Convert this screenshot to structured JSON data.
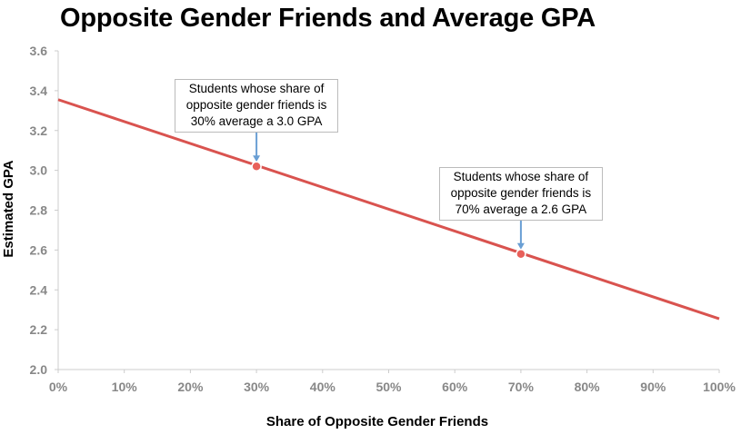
{
  "chart_data": {
    "type": "line",
    "title": "Opposite Gender Friends and Average GPA",
    "xlabel": "Share of Opposite Gender Friends",
    "ylabel": "Estimated GPA",
    "xlim": [
      0,
      100
    ],
    "ylim": [
      2.0,
      3.6
    ],
    "x_ticks": [
      "0%",
      "10%",
      "20%",
      "30%",
      "40%",
      "50%",
      "60%",
      "70%",
      "80%",
      "90%",
      "100%"
    ],
    "y_ticks": [
      "2.0",
      "2.2",
      "2.4",
      "2.6",
      "2.8",
      "3.0",
      "3.2",
      "3.4",
      "3.6"
    ],
    "series": [
      {
        "name": "Estimated GPA",
        "color": "#d9534f",
        "x": [
          0,
          100
        ],
        "y": [
          3.355,
          2.255
        ]
      }
    ],
    "highlight_points": [
      {
        "x": 30,
        "y": 3.02,
        "color": "#e8605a"
      },
      {
        "x": 70,
        "y": 2.58,
        "color": "#e8605a"
      }
    ],
    "annotations": [
      {
        "lines": [
          "Students whose share of",
          "opposite gender friends is",
          "30% average a 3.0 GPA"
        ],
        "x": 30,
        "y": 3.02
      },
      {
        "lines": [
          "Students whose share of",
          "opposite gender friends is",
          "70% average a 2.6 GPA"
        ],
        "x": 70,
        "y": 2.58
      }
    ],
    "arrow_color": "#6a9fd4",
    "axis_color": "#cccccc"
  }
}
